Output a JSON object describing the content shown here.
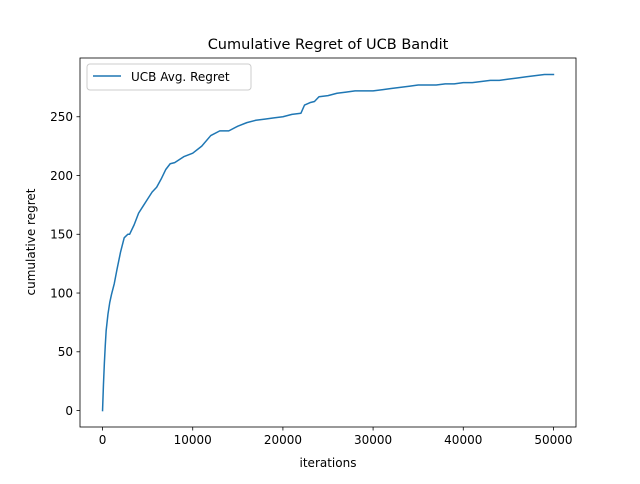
{
  "chart_data": {
    "type": "line",
    "title": "Cumulative Regret of UCB Bandit",
    "xlabel": "iterations",
    "ylabel": "cumulative regret",
    "xlim": [
      -2500,
      52500
    ],
    "ylim": [
      -14,
      300
    ],
    "xticks": [
      0,
      10000,
      20000,
      30000,
      40000,
      50000
    ],
    "xtick_labels": [
      "0",
      "10000",
      "20000",
      "30000",
      "40000",
      "50000"
    ],
    "yticks": [
      0,
      50,
      100,
      150,
      200,
      250
    ],
    "ytick_labels": [
      "0",
      "50",
      "100",
      "150",
      "200",
      "250"
    ],
    "grid": false,
    "legend": "upper left",
    "series": [
      {
        "name": "UCB Avg. Regret",
        "color": "#1f77b4",
        "x": [
          0,
          100,
          200,
          300,
          400,
          600,
          800,
          1000,
          1300,
          1600,
          2000,
          2400,
          2800,
          3000,
          3500,
          4000,
          4500,
          5000,
          5500,
          6000,
          6500,
          7000,
          7500,
          8000,
          9000,
          10000,
          11000,
          12000,
          13000,
          14000,
          15000,
          16000,
          17000,
          18000,
          19000,
          20000,
          21000,
          22000,
          22400,
          23000,
          23500,
          24000,
          25000,
          26000,
          27000,
          28000,
          29000,
          30000,
          31000,
          32000,
          33000,
          34000,
          35000,
          36000,
          37000,
          38000,
          39000,
          40000,
          41000,
          42000,
          43000,
          44000,
          45000,
          46000,
          47000,
          48000,
          49000,
          50000
        ],
        "y": [
          0,
          22,
          40,
          55,
          68,
          82,
          92,
          99,
          108,
          120,
          135,
          147,
          150,
          150,
          158,
          168,
          174,
          180,
          186,
          190,
          197,
          205,
          210,
          211,
          216,
          219,
          225,
          234,
          238,
          238,
          242,
          245,
          247,
          248,
          249,
          250,
          252,
          253,
          260,
          262,
          263,
          267,
          268,
          270,
          271,
          272,
          272,
          272,
          273,
          274,
          275,
          276,
          277,
          277,
          277,
          278,
          278,
          279,
          279,
          280,
          281,
          281,
          282,
          283,
          284,
          285,
          286,
          286
        ]
      }
    ]
  }
}
